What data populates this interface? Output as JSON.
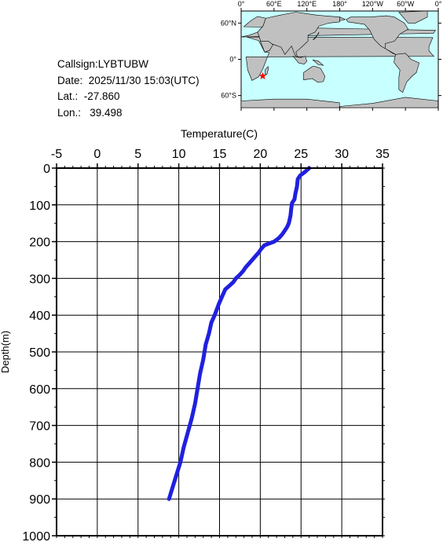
{
  "info": {
    "callsign": "Callsign:LYBTUBW",
    "date": "Date:  2025/11/30 15:03(UTC)",
    "lat": "Lat.:  -27.860",
    "lon": "Lon.:   39.498"
  },
  "map": {
    "lon_labels": [
      "0°",
      "60°E",
      "120°E",
      "180°",
      "120°W",
      "60°W",
      "0°"
    ],
    "lat_labels": [
      "60°N",
      "0°",
      "60°S"
    ],
    "ocean_color": "#c8ffff",
    "land_color": "#c0c0c0",
    "marker": {
      "lat": -27.86,
      "lon": 39.498,
      "symbol": "star",
      "color": "#ff0000"
    }
  },
  "chart_data": {
    "type": "line",
    "xlabel": "Temperature(C)",
    "ylabel": "Depth(m)",
    "xlim": [
      -5,
      35
    ],
    "ylim": [
      0,
      1000
    ],
    "y_inverted": true,
    "x_ticks": [
      "-5",
      "0",
      "5",
      "10",
      "15",
      "20",
      "25",
      "30",
      "35"
    ],
    "y_ticks": [
      "0",
      "100",
      "200",
      "300",
      "400",
      "500",
      "600",
      "700",
      "800",
      "900",
      "1000"
    ],
    "grid": true,
    "line_color": "#2020e0",
    "series": [
      {
        "x": [
          26.0,
          25.5,
          24.9,
          24.6,
          24.5,
          24.3,
          24.2,
          23.9,
          23.8,
          23.7,
          23.5,
          23.3,
          23.0,
          22.7,
          22.3,
          21.7,
          21.1,
          20.5,
          20.1,
          19.8,
          19.4,
          19.0,
          18.6,
          18.2,
          17.9,
          17.5,
          17.0,
          16.7,
          16.2,
          15.7,
          15.3,
          14.9,
          14.4,
          14.0,
          13.7,
          13.3,
          13.0,
          12.6,
          12.3,
          12.0,
          11.6,
          11.1,
          10.6,
          10.2,
          9.5,
          8.8
        ],
        "y": [
          0,
          10,
          20,
          30,
          50,
          70,
          85,
          95,
          110,
          130,
          150,
          160,
          170,
          180,
          190,
          200,
          205,
          210,
          220,
          230,
          240,
          250,
          260,
          270,
          280,
          290,
          300,
          310,
          320,
          330,
          350,
          370,
          400,
          420,
          450,
          480,
          520,
          560,
          600,
          640,
          680,
          720,
          760,
          800,
          850,
          900
        ]
      }
    ]
  }
}
